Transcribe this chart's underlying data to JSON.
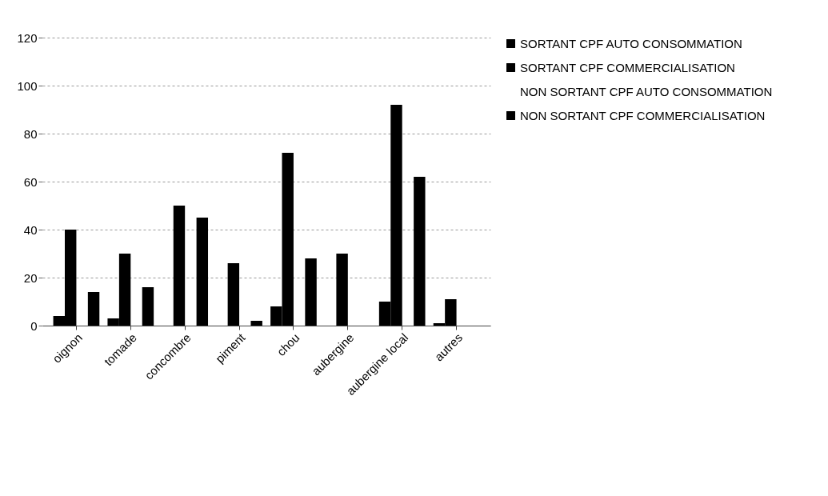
{
  "chart_data": {
    "type": "bar",
    "categories": [
      "oignon",
      "tomade",
      "concombre",
      "piment",
      "chou",
      "aubergine",
      "aubergine local",
      "autres"
    ],
    "series": [
      {
        "name": "SORTANT CPF AUTO CONSOMMATION",
        "color": "#000000",
        "values": [
          4,
          3,
          0,
          0,
          8,
          0,
          10,
          1
        ]
      },
      {
        "name": "SORTANT CPF COMMERCIALISATION",
        "color": "#000000",
        "values": [
          40,
          30,
          50,
          26,
          72,
          30,
          92,
          11
        ]
      },
      {
        "name": "NON SORTANT CPF AUTO CONSOMMATION",
        "values": [
          null,
          null,
          null,
          null,
          null,
          null,
          null,
          null
        ]
      },
      {
        "name": "NON SORTANT CPF COMMERCIALISATION",
        "color": "#000000",
        "values": [
          14,
          16,
          45,
          2,
          28,
          0,
          62,
          0
        ]
      }
    ],
    "ylim": [
      0,
      120
    ],
    "yticks": [
      0,
      20,
      40,
      60,
      80,
      100,
      120
    ],
    "grid": "y",
    "legend": "right"
  }
}
